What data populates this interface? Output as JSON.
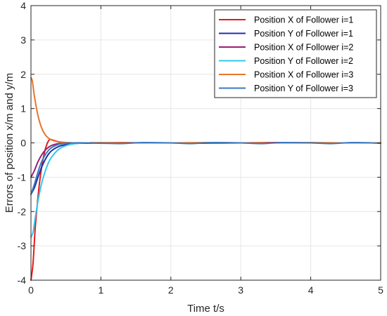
{
  "chart_data": {
    "type": "line",
    "title": "",
    "xlabel": "Time t/s",
    "ylabel": "Errors of position x/m and y/m",
    "xlim": [
      0,
      5
    ],
    "ylim": [
      -4,
      4
    ],
    "xticks": [
      "0",
      "1",
      "2",
      "3",
      "4",
      "5"
    ],
    "yticks": [
      "-4",
      "-3",
      "-2",
      "-1",
      "0",
      "1",
      "2",
      "3",
      "4"
    ],
    "grid": true,
    "legend_position": "top-right",
    "series": [
      {
        "name": "Position X of Follower i=1",
        "color": "#e41a1c",
        "x": [
          0,
          0.03,
          0.06,
          0.09,
          0.12,
          0.15,
          0.18,
          0.21,
          0.24,
          0.27,
          0.3,
          0.35,
          0.4,
          0.5,
          0.6,
          0.8,
          1.0,
          1.3,
          1.6,
          2.0,
          2.5,
          3.0,
          3.5,
          4.0,
          4.5,
          5.0
        ],
        "y": [
          -4.0,
          -3.5,
          -2.5,
          -1.8,
          -1.2,
          -0.75,
          -0.4,
          -0.15,
          0.02,
          0.1,
          0.09,
          0.06,
          0.03,
          0.01,
          0.0,
          -0.01,
          0.0,
          0.01,
          0.0,
          0.0,
          -0.01,
          0.0,
          0.01,
          0.0,
          0.0,
          0.0
        ]
      },
      {
        "name": "Position Y of Follower i=1",
        "color": "#1f2fa8",
        "x": [
          0,
          0.05,
          0.1,
          0.15,
          0.2,
          0.25,
          0.3,
          0.4,
          0.5,
          0.6,
          0.8,
          1.0,
          1.5,
          2.0,
          2.5,
          3.0,
          3.5,
          4.0,
          4.5,
          5.0
        ],
        "y": [
          -1.5,
          -1.3,
          -1.0,
          -0.72,
          -0.5,
          -0.33,
          -0.22,
          -0.1,
          -0.05,
          -0.02,
          0.0,
          0.0,
          0.0,
          0.0,
          0.0,
          0.0,
          0.0,
          0.0,
          0.0,
          0.0
        ]
      },
      {
        "name": "Position X of Follower i=2",
        "color": "#9b1d6e",
        "x": [
          0,
          0.05,
          0.1,
          0.15,
          0.2,
          0.25,
          0.3,
          0.4,
          0.5,
          0.6,
          0.8,
          1.0,
          1.5,
          2.0,
          2.5,
          3.0,
          3.5,
          4.0,
          4.5,
          5.0
        ],
        "y": [
          -1.0,
          -0.8,
          -0.55,
          -0.36,
          -0.22,
          -0.13,
          -0.07,
          -0.02,
          0.0,
          0.0,
          0.0,
          0.0,
          0.0,
          0.0,
          0.0,
          0.0,
          0.0,
          0.0,
          0.0,
          0.0
        ]
      },
      {
        "name": "Position Y of Follower i=2",
        "color": "#33c6ee",
        "x": [
          0,
          0.03,
          0.06,
          0.1,
          0.15,
          0.2,
          0.25,
          0.3,
          0.4,
          0.5,
          0.6,
          0.7,
          0.8,
          1.0,
          1.5,
          2.0,
          2.5,
          3.0,
          3.5,
          4.0,
          4.5,
          5.0
        ],
        "y": [
          -2.75,
          -2.6,
          -2.2,
          -1.7,
          -1.2,
          -0.85,
          -0.58,
          -0.4,
          -0.18,
          -0.08,
          -0.03,
          -0.01,
          0.0,
          0.0,
          0.0,
          0.0,
          0.0,
          0.0,
          0.0,
          0.0,
          0.0,
          0.0
        ]
      },
      {
        "name": "Position X of Follower i=3",
        "color": "#e6762b",
        "x": [
          0,
          0.02,
          0.05,
          0.1,
          0.15,
          0.2,
          0.25,
          0.3,
          0.35,
          0.4,
          0.5,
          0.6,
          0.8,
          1.0,
          1.5,
          2.0,
          2.5,
          3.0,
          3.5,
          4.0,
          4.5,
          5.0
        ],
        "y": [
          1.9,
          1.8,
          1.35,
          0.8,
          0.45,
          0.25,
          0.14,
          0.08,
          0.05,
          0.03,
          0.01,
          0.0,
          0.0,
          0.01,
          0.0,
          0.0,
          0.01,
          0.0,
          0.0,
          0.01,
          0.0,
          0.0
        ]
      },
      {
        "name": "Position Y of Follower i=3",
        "color": "#3a78bd",
        "x": [
          0,
          0.05,
          0.1,
          0.15,
          0.2,
          0.25,
          0.3,
          0.4,
          0.5,
          0.6,
          0.8,
          1.0,
          1.3,
          1.6,
          2.0,
          2.3,
          2.6,
          3.0,
          3.3,
          3.6,
          4.0,
          4.3,
          4.6,
          5.0
        ],
        "y": [
          -1.5,
          -1.2,
          -0.85,
          -0.56,
          -0.36,
          -0.22,
          -0.13,
          -0.04,
          -0.01,
          0.0,
          0.0,
          -0.01,
          -0.02,
          0.01,
          0.0,
          -0.02,
          0.01,
          0.0,
          -0.02,
          0.01,
          0.0,
          -0.02,
          0.01,
          -0.01
        ]
      }
    ]
  }
}
